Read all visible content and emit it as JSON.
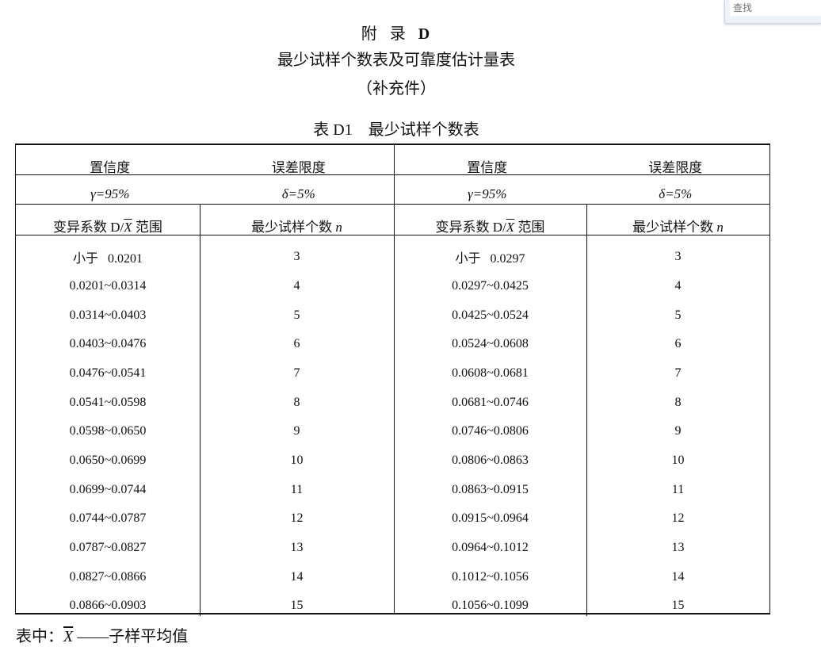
{
  "find_box": {
    "placeholder": "查找"
  },
  "header": {
    "appendix": "附  录",
    "appendix_letter": "D",
    "title": "最少试样个数表及可靠度估计量表",
    "subtitle": "（补充件）",
    "table_caption": "表 D1    最少试样个数表"
  },
  "table": {
    "head1": [
      "置信度",
      "误差限度",
      "置信度",
      "误差限度"
    ],
    "head2": [
      "γ=95%",
      "δ=5%",
      "γ=95%",
      "δ=5%"
    ],
    "head3": {
      "range_prefix": "变异系数 D/",
      "range_var": "X",
      "range_suffix": " 范围",
      "n_label": "最少试样个数 ",
      "n_var": "n"
    },
    "rows": [
      [
        "小于   0.0201",
        "3",
        "小于   0.0297",
        "3"
      ],
      [
        "0.0201~0.0314",
        "4",
        "0.0297~0.0425",
        "4"
      ],
      [
        "0.0314~0.0403",
        "5",
        "0.0425~0.0524",
        "5"
      ],
      [
        "0.0403~0.0476",
        "6",
        "0.0524~0.0608",
        "6"
      ],
      [
        "0.0476~0.0541",
        "7",
        "0.0608~0.0681",
        "7"
      ],
      [
        "0.0541~0.0598",
        "8",
        "0.0681~0.0746",
        "8"
      ],
      [
        "0.0598~0.0650",
        "9",
        "0.0746~0.0806",
        "9"
      ],
      [
        "0.0650~0.0699",
        "10",
        "0.0806~0.0863",
        "10"
      ],
      [
        "0.0699~0.0744",
        "11",
        "0.0863~0.0915",
        "11"
      ],
      [
        "0.0744~0.0787",
        "12",
        "0.0915~0.0964",
        "12"
      ],
      [
        "0.0787~0.0827",
        "13",
        "0.0964~0.1012",
        "13"
      ],
      [
        "0.0827~0.0866",
        "14",
        "0.1012~0.1056",
        "14"
      ],
      [
        "0.0866~0.0903",
        "15",
        "0.1056~0.1099",
        "15"
      ]
    ]
  },
  "note": {
    "prefix": "表中：",
    "var": "X",
    "text": "——子样平均值"
  }
}
